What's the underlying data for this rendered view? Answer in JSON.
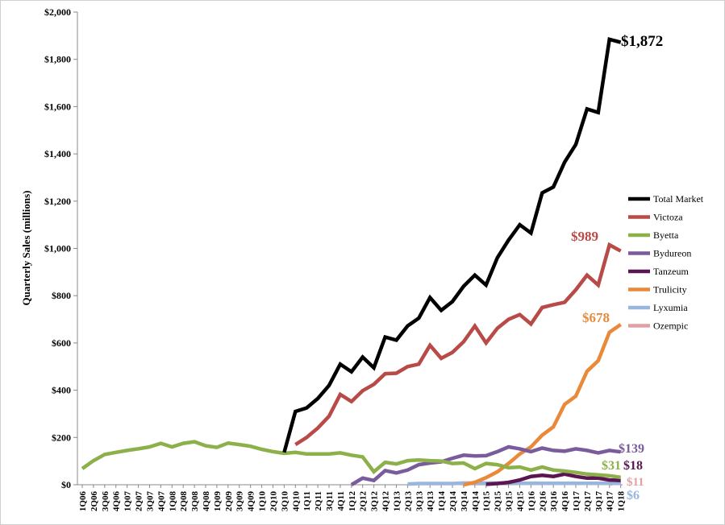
{
  "chart_data": {
    "type": "line",
    "title": "",
    "xlabel": "",
    "ylabel": "Quarterly Sales (millions)",
    "ylim": [
      0,
      2000
    ],
    "y_ticks": [
      "$0",
      "$200",
      "$400",
      "$600",
      "$800",
      "$1,000",
      "$1,200",
      "$1,400",
      "$1,600",
      "$1,800",
      "$2,000"
    ],
    "y_tick_values": [
      0,
      200,
      400,
      600,
      800,
      1000,
      1200,
      1400,
      1600,
      1800,
      2000
    ],
    "grid": false,
    "legend_position": "right",
    "categories": [
      "1Q06",
      "2Q06",
      "3Q06",
      "4Q06",
      "1Q07",
      "2Q07",
      "3Q07",
      "4Q07",
      "1Q08",
      "2Q08",
      "3Q08",
      "4Q08",
      "1Q09",
      "2Q09",
      "3Q09",
      "4Q09",
      "1Q10",
      "2Q10",
      "3Q10",
      "4Q10",
      "1Q11",
      "2Q11",
      "3Q11",
      "4Q11",
      "1Q12",
      "2Q12",
      "3Q12",
      "4Q12",
      "1Q13",
      "2Q13",
      "3Q13",
      "4Q13",
      "1Q14",
      "2Q14",
      "3Q14",
      "4Q14",
      "1Q15",
      "2Q15",
      "3Q15",
      "4Q15",
      "1Q16",
      "2Q16",
      "3Q16",
      "4Q16",
      "1Q17",
      "2Q17",
      "3Q17",
      "4Q17",
      "1Q18"
    ],
    "series": [
      {
        "name": "Total Market",
        "color": "#000000",
        "end_label": "$1,872",
        "values": [
          null,
          null,
          null,
          null,
          null,
          null,
          null,
          null,
          null,
          null,
          null,
          null,
          null,
          null,
          null,
          null,
          null,
          null,
          137,
          310,
          325,
          365,
          420,
          510,
          478,
          540,
          495,
          625,
          612,
          672,
          705,
          792,
          738,
          775,
          840,
          887,
          845,
          960,
          1035,
          1100,
          1065,
          1235,
          1260,
          1365,
          1440,
          1590,
          1575,
          1885,
          1872
        ]
      },
      {
        "name": "Victoza",
        "color": "#b84a47",
        "end_label": "$989",
        "values": [
          null,
          null,
          null,
          null,
          null,
          null,
          null,
          null,
          null,
          null,
          null,
          null,
          null,
          null,
          null,
          null,
          null,
          null,
          null,
          170,
          200,
          240,
          290,
          382,
          352,
          398,
          425,
          470,
          472,
          500,
          510,
          590,
          535,
          560,
          605,
          672,
          600,
          662,
          700,
          720,
          680,
          750,
          762,
          772,
          825,
          887,
          845,
          1015,
          989
        ]
      },
      {
        "name": "Byetta",
        "color": "#8db14a",
        "end_label": "$31",
        "values": [
          68,
          102,
          128,
          137,
          145,
          152,
          160,
          175,
          160,
          175,
          182,
          165,
          158,
          176,
          170,
          163,
          150,
          140,
          133,
          137,
          130,
          130,
          130,
          135,
          125,
          118,
          55,
          95,
          88,
          102,
          105,
          102,
          100,
          90,
          92,
          68,
          90,
          85,
          72,
          75,
          62,
          75,
          62,
          58,
          52,
          45,
          42,
          38,
          31
        ]
      },
      {
        "name": "Bydureon",
        "color": "#7a5c9c",
        "end_label": "$139",
        "values": [
          null,
          null,
          null,
          null,
          null,
          null,
          null,
          null,
          null,
          null,
          null,
          null,
          null,
          null,
          null,
          null,
          null,
          null,
          null,
          null,
          null,
          null,
          null,
          null,
          0,
          28,
          18,
          60,
          50,
          62,
          85,
          92,
          97,
          112,
          125,
          122,
          123,
          140,
          160,
          152,
          140,
          155,
          145,
          142,
          152,
          145,
          135,
          145,
          139
        ]
      },
      {
        "name": "Tanzeum",
        "color": "#5b1652",
        "end_label": "$18",
        "values": [
          null,
          null,
          null,
          null,
          null,
          null,
          null,
          null,
          null,
          null,
          null,
          null,
          null,
          null,
          null,
          null,
          null,
          null,
          null,
          null,
          null,
          null,
          null,
          null,
          null,
          null,
          null,
          null,
          null,
          null,
          null,
          null,
          null,
          null,
          null,
          null,
          2,
          5,
          10,
          20,
          35,
          40,
          35,
          45,
          35,
          28,
          28,
          20,
          18
        ]
      },
      {
        "name": "Trulicity",
        "color": "#e88a3a",
        "end_label": "$678",
        "values": [
          null,
          null,
          null,
          null,
          null,
          null,
          null,
          null,
          null,
          null,
          null,
          null,
          null,
          null,
          null,
          null,
          null,
          null,
          null,
          null,
          null,
          null,
          null,
          null,
          null,
          null,
          null,
          null,
          null,
          null,
          null,
          null,
          null,
          null,
          0,
          10,
          30,
          55,
          90,
          130,
          160,
          210,
          245,
          340,
          375,
          480,
          525,
          645,
          678
        ]
      },
      {
        "name": "Lyxumia",
        "color": "#9ab6dc",
        "end_label": "$6",
        "values": [
          null,
          null,
          null,
          null,
          null,
          null,
          null,
          null,
          null,
          null,
          null,
          null,
          null,
          null,
          null,
          null,
          null,
          null,
          null,
          null,
          null,
          null,
          null,
          null,
          null,
          null,
          null,
          null,
          null,
          3,
          5,
          5,
          5,
          5,
          7,
          7,
          7,
          7,
          7,
          6,
          6,
          6,
          6,
          6,
          6,
          6,
          6,
          6,
          6
        ]
      },
      {
        "name": "Ozempic",
        "color": "#e0a0a3",
        "end_label": "$11",
        "values": [
          null,
          null,
          null,
          null,
          null,
          null,
          null,
          null,
          null,
          null,
          null,
          null,
          null,
          null,
          null,
          null,
          null,
          null,
          null,
          null,
          null,
          null,
          null,
          null,
          null,
          null,
          null,
          null,
          null,
          null,
          null,
          null,
          null,
          null,
          null,
          null,
          null,
          null,
          null,
          null,
          null,
          null,
          null,
          null,
          null,
          null,
          null,
          3,
          11
        ]
      }
    ]
  }
}
